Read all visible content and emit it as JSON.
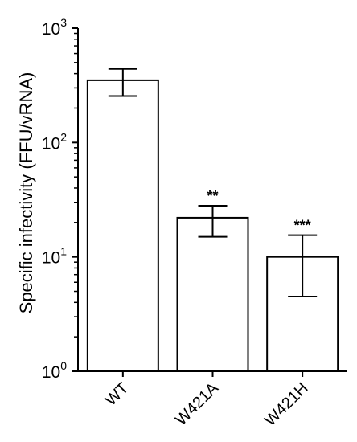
{
  "chart_data": {
    "type": "bar",
    "yscale": "log",
    "ylim": [
      1,
      1000
    ],
    "ylabel": "Specific infectivity (FFU/vRNA)",
    "xlabel": "",
    "title": "",
    "yticks": [
      {
        "base": "10",
        "exp": "0",
        "value": 1
      },
      {
        "base": "10",
        "exp": "1",
        "value": 10
      },
      {
        "base": "10",
        "exp": "2",
        "value": 100
      },
      {
        "base": "10",
        "exp": "3",
        "value": 1000
      }
    ],
    "categories": [
      "WT",
      "W421A",
      "W421H"
    ],
    "values": [
      350,
      22,
      10
    ],
    "error_low": [
      255,
      15,
      4.5
    ],
    "error_high": [
      440,
      28,
      15.5
    ],
    "significance": [
      "",
      "**",
      "***"
    ],
    "grid": false,
    "bar_fill": "#ffffff",
    "bar_edge": "#000000"
  }
}
